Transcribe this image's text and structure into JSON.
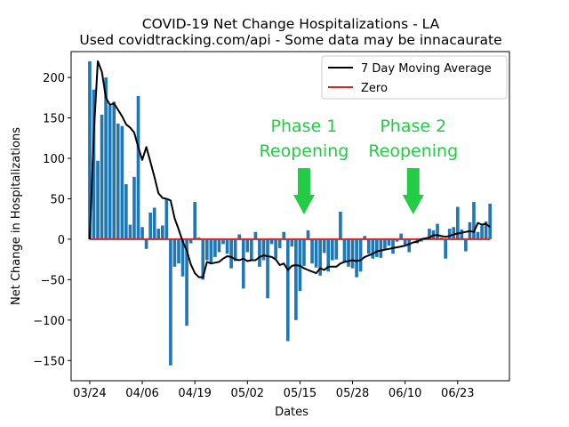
{
  "chart_data": {
    "type": "bar",
    "title": "COVID-19 Net Change Hospitalizations - LA",
    "subtitle": "Used covidtracking.com/api - Some data may be innacaurate",
    "xlabel": "Dates",
    "ylabel": "Net Change in Hospitalizations",
    "xticks": [
      "03/24",
      "04/06",
      "04/19",
      "05/02",
      "05/15",
      "05/28",
      "06/10",
      "06/23"
    ],
    "yticks": [
      200,
      150,
      100,
      50,
      0,
      -50,
      -100,
      -150
    ],
    "ylim": [
      -175,
      232
    ],
    "xlim": [
      -4.6,
      103.8
    ],
    "grid": false,
    "legend_position": "top-right",
    "bar_color": "#1f77b4",
    "moving_average_color": "#000000",
    "zero_color": "#d62728",
    "arrow_color": "#22cc44",
    "series": [
      {
        "name": "Net Change",
        "values": [
          220,
          185,
          97,
          154,
          200,
          165,
          170,
          143,
          140,
          68,
          18,
          77,
          177,
          15,
          -12,
          33,
          39,
          13,
          17,
          49,
          -156,
          -34,
          -30,
          -46,
          -107,
          -5,
          46,
          2,
          -50,
          -26,
          -31,
          -22,
          -16,
          -6,
          -18,
          -36,
          -27,
          6,
          -61,
          -16,
          -27,
          9,
          -34,
          -26,
          -73,
          -6,
          -24,
          -11,
          9,
          -126,
          -9,
          -100,
          -64,
          -33,
          11,
          -30,
          -35,
          -45,
          -17,
          -40,
          -26,
          -25,
          34,
          -29,
          -34,
          -36,
          -47,
          -40,
          4,
          -18,
          -24,
          -22,
          -23,
          -12,
          -8,
          -18,
          -3,
          7,
          -8,
          -16,
          0,
          -5,
          -3,
          2,
          13,
          11,
          19,
          2,
          -24,
          13,
          15,
          40,
          12,
          -15,
          21,
          46,
          9,
          17,
          22,
          44
        ]
      },
      {
        "name": "7 Day Moving Average",
        "values": [
          0,
          130,
          220,
          207,
          175,
          166,
          168,
          160,
          152,
          142,
          138,
          132,
          114,
          98,
          114,
          96,
          77,
          57,
          51,
          50,
          48,
          26,
          12,
          -3,
          -14,
          -31,
          -42,
          -47,
          -47,
          -28,
          -30,
          -29,
          -28,
          -24,
          -21,
          -22,
          -25,
          -26,
          -24,
          -27,
          -26,
          -26,
          -22,
          -20,
          -21,
          -22,
          -25,
          -32,
          -30,
          -38,
          -33,
          -32,
          -33,
          -36,
          -38,
          -40,
          -42,
          -36,
          -38,
          -34,
          -34,
          -34,
          -30,
          -28,
          -27,
          -26,
          -27,
          -26,
          -22,
          -20,
          -18,
          -15,
          -14,
          -13,
          -12,
          -11,
          -10,
          -9,
          -8,
          -6,
          -4,
          -3,
          0,
          1,
          2,
          5,
          5,
          4,
          3,
          4,
          6,
          7,
          8,
          9,
          10,
          9,
          20,
          18,
          19,
          15
        ]
      },
      {
        "name": "Zero",
        "values": [
          0,
          0
        ]
      }
    ],
    "annotations": [
      {
        "text": [
          "Phase 1",
          "Reopening"
        ],
        "x_index": 53
      },
      {
        "text": [
          "Phase 2",
          "Reopening"
        ],
        "x_index": 80
      }
    ]
  }
}
